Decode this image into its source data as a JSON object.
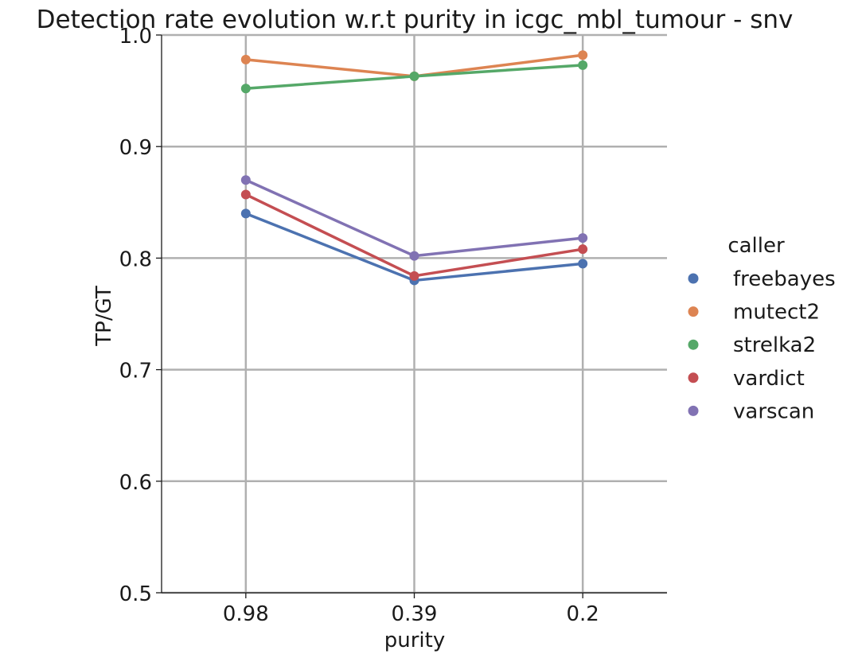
{
  "chart_data": {
    "type": "line",
    "title": "Detection rate evolution w.r.t purity in icgc_mbl_tumour - snv",
    "xlabel": "purity",
    "ylabel": "TP/GT",
    "categories": [
      "0.98",
      "0.39",
      "0.2"
    ],
    "ylim": [
      0.5,
      1.0
    ],
    "yticks": [
      0.5,
      0.6,
      0.7,
      0.8,
      0.9,
      1.0
    ],
    "ytick_labels": [
      "0.5",
      "0.6",
      "0.7",
      "0.8",
      "0.9",
      "1.0"
    ],
    "grid": true,
    "legend": {
      "title": "caller",
      "position": "right"
    },
    "series": [
      {
        "name": "freebayes",
        "color": "#4c72b0",
        "values": [
          0.84,
          0.78,
          0.795
        ]
      },
      {
        "name": "mutect2",
        "color": "#dd8452",
        "values": [
          0.978,
          0.963,
          0.982
        ]
      },
      {
        "name": "strelka2",
        "color": "#55a868",
        "values": [
          0.952,
          0.963,
          0.973
        ]
      },
      {
        "name": "vardict",
        "color": "#c44e52",
        "values": [
          0.857,
          0.784,
          0.808
        ]
      },
      {
        "name": "varscan",
        "color": "#8172b3",
        "values": [
          0.87,
          0.802,
          0.818
        ]
      }
    ]
  }
}
